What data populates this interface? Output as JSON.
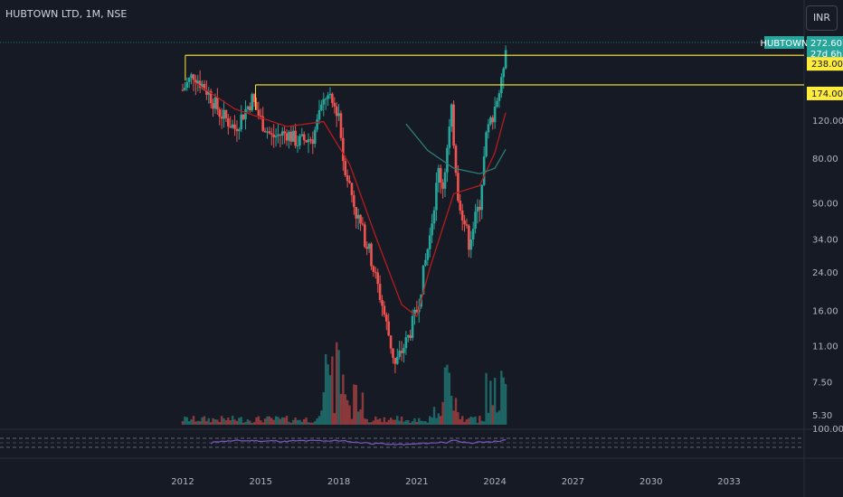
{
  "header": {
    "symbol_title": "HUBTOWN LTD, 1M, NSE",
    "currency": "INR"
  },
  "price_labels": {
    "ticker": "HUBTOWN",
    "last": "272.60",
    "countdown": "27d 6h",
    "level_high": "238.00",
    "level_low": "174.00"
  },
  "colors": {
    "background": "#161a25",
    "up": "#26a69a",
    "down": "#ef5350",
    "level": "#ffeb3b",
    "ma_slow": "#2d7d78",
    "ma_fast": "#b71c1c",
    "rsi": "#7e57c2",
    "axis_text": "#b2b5be"
  },
  "chart_data": {
    "type": "candlestick",
    "title": "HUBTOWN LTD, 1M, NSE",
    "y_scale": "log",
    "y_ticks": [
      "272.60",
      "238.00",
      "174.00",
      "120.00",
      "80.00",
      "50.00",
      "34.00",
      "24.00",
      "16.00",
      "11.00",
      "7.50",
      "5.30"
    ],
    "x_ticks": [
      "2012",
      "2015",
      "2018",
      "2021",
      "2024",
      "2027",
      "2030",
      "2033"
    ],
    "horizontal_levels": [
      238,
      174
    ],
    "price_path": [
      [
        "2012-01",
        165
      ],
      [
        "2012-06",
        195
      ],
      [
        "2013-01",
        160
      ],
      [
        "2013-06",
        130
      ],
      [
        "2014-01",
        110
      ],
      [
        "2014-09",
        150
      ],
      [
        "2015-01",
        120
      ],
      [
        "2015-06",
        100
      ],
      [
        "2016-01",
        105
      ],
      [
        "2016-06",
        95
      ],
      [
        "2017-01",
        100
      ],
      [
        "2017-07",
        155
      ],
      [
        "2018-01",
        130
      ],
      [
        "2018-03",
        80
      ],
      [
        "2018-09",
        45
      ],
      [
        "2019-03",
        30
      ],
      [
        "2019-09",
        17
      ],
      [
        "2020-03",
        9
      ],
      [
        "2020-09",
        12
      ],
      [
        "2021-01",
        16
      ],
      [
        "2021-07",
        35
      ],
      [
        "2021-11",
        70
      ],
      [
        "2022-01",
        60
      ],
      [
        "2022-05",
        130
      ],
      [
        "2022-08",
        55
      ],
      [
        "2023-01",
        33
      ],
      [
        "2023-06",
        50
      ],
      [
        "2023-09",
        100
      ],
      [
        "2024-01",
        140
      ],
      [
        "2024-04",
        175
      ],
      [
        "2024-06",
        272.6
      ]
    ],
    "ma_fast": [
      [
        "2012-06",
        180
      ],
      [
        "2014-01",
        135
      ],
      [
        "2016-01",
        112
      ],
      [
        "2017-06",
        118
      ],
      [
        "2018-06",
        75
      ],
      [
        "2019-06",
        35
      ],
      [
        "2020-06",
        17
      ],
      [
        "2021-01",
        15
      ],
      [
        "2021-07",
        25
      ],
      [
        "2022-06",
        55
      ],
      [
        "2023-06",
        60
      ],
      [
        "2024-01",
        85
      ],
      [
        "2024-06",
        130
      ]
    ],
    "ma_slow": [
      [
        "2020-08",
        115
      ],
      [
        "2021-06",
        87
      ],
      [
        "2022-06",
        72
      ],
      [
        "2023-06",
        68
      ],
      [
        "2024-01",
        72
      ],
      [
        "2024-06",
        88
      ]
    ],
    "volume_panel": true,
    "rsi_panel": {
      "upper_label": "100.00"
    }
  }
}
